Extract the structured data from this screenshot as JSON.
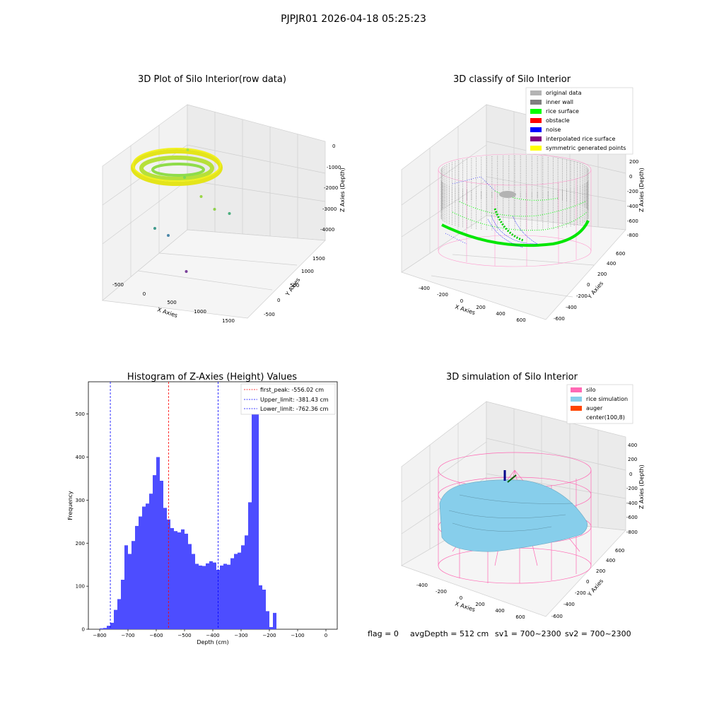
{
  "figure": {
    "title": "PJPJR01 2026-04-18 05:25:23",
    "footer": {
      "flag": "flag = 0",
      "avg_depth": "avgDepth = 512 cm",
      "sv1": "sv1 = 700~2300",
      "sv2": "sv2 = 700~2300"
    }
  },
  "colors": {
    "histogram_bar": "#4d4dff",
    "first_peak_line": "#ff0000",
    "limit_line": "#0000ff",
    "original_data": "#b3b3b3",
    "inner_wall": "#808080",
    "rice_surface": "#00ff00",
    "obstacle": "#ff0000",
    "noise": "#0000ff",
    "interpolated_rice_surface": "#800080",
    "symmetric_generated_points": "#ffff00",
    "silo": "#ff69b4",
    "rice_simulation": "#87ceeb",
    "auger": "#ff4500"
  },
  "chart_data": [
    {
      "type": "scatter",
      "subtype": "3d",
      "title": "3D Plot of Silo Interior(row data)",
      "xlabel": "X Axies",
      "ylabel": "Y Axies",
      "zlabel": "Z Axies (Depth)",
      "x_ticks": [
        -500,
        0,
        500,
        1000,
        1500
      ],
      "y_ticks": [
        -500,
        0,
        500,
        1000,
        1500
      ],
      "z_ticks": [
        0,
        -1000,
        -2000,
        -3000,
        -4000
      ],
      "outliers": [
        {
          "x": 700,
          "y": 300,
          "z": -300
        },
        {
          "x": 600,
          "y": 500,
          "z": -1500
        },
        {
          "x": 900,
          "y": 400,
          "z": -2000
        },
        {
          "x": 1100,
          "y": 500,
          "z": -2500
        },
        {
          "x": 1300,
          "y": 700,
          "z": -2800
        },
        {
          "x": 200,
          "y": 100,
          "z": -3000
        },
        {
          "x": 400,
          "y": 200,
          "z": -3300
        },
        {
          "x": 700,
          "y": 200,
          "z": -4500
        }
      ]
    },
    {
      "type": "scatter",
      "subtype": "3d",
      "title": "3D classify of Silo Interior",
      "xlabel": "X Axies",
      "ylabel": "Y Axies",
      "zlabel": "Z Axies (Depth)",
      "x_ticks": [
        -400,
        -200,
        0,
        200,
        400,
        600
      ],
      "y_ticks": [
        -600,
        -400,
        -200,
        0,
        200,
        400,
        600
      ],
      "z_ticks": [
        200,
        0,
        -200,
        -400,
        -600,
        -800
      ],
      "legend_position": "top-right",
      "legend": [
        "original data",
        "inner wall",
        "rice surface",
        "obstacle",
        "noise",
        "interpolated rice surface",
        "symmetric generated points"
      ]
    },
    {
      "type": "bar",
      "subtype": "histogram",
      "title": "Histogram of Z-Axies (Height) Values",
      "xlabel": "Depth (cm)",
      "ylabel": "Frequency",
      "xlim": [
        -840,
        40
      ],
      "ylim": [
        0,
        575
      ],
      "x_ticks": [
        -800,
        -700,
        -600,
        -500,
        -400,
        -300,
        -200,
        -100,
        0
      ],
      "y_ticks": [
        0,
        100,
        200,
        300,
        400,
        500
      ],
      "bin_width": 12.5,
      "bin_start": -800,
      "values": [
        2,
        3,
        8,
        15,
        45,
        70,
        115,
        195,
        175,
        205,
        240,
        262,
        285,
        292,
        315,
        358,
        400,
        345,
        282,
        255,
        235,
        228,
        225,
        232,
        222,
        198,
        175,
        152,
        148,
        147,
        153,
        158,
        155,
        138,
        148,
        152,
        150,
        165,
        175,
        178,
        195,
        218,
        295,
        525,
        545,
        102,
        92,
        42,
        5,
        38
      ],
      "vlines": [
        {
          "label": "first_peak: -556.02 cm",
          "x": -556.02,
          "color_key": "first_peak_line"
        },
        {
          "label": "Upper_limit: -381.43 cm",
          "x": -381.43,
          "color_key": "limit_line"
        },
        {
          "label": "Lower_limit: -762.36 cm",
          "x": -762.36,
          "color_key": "limit_line"
        }
      ],
      "legend_position": "top-right"
    },
    {
      "type": "surface",
      "subtype": "3d",
      "title": "3D simulation of Silo Interior",
      "xlabel": "X Axies",
      "ylabel": "Y Axies",
      "zlabel": "Z Axies (Depth)",
      "x_ticks": [
        -400,
        -200,
        0,
        200,
        400,
        600
      ],
      "y_ticks": [
        -600,
        -400,
        -200,
        0,
        200,
        400,
        600
      ],
      "z_ticks": [
        400,
        200,
        0,
        -200,
        -400,
        -600,
        -800
      ],
      "legend_position": "top-right",
      "legend": [
        "silo",
        "rice simulation",
        "auger",
        "center(100,8)"
      ]
    }
  ]
}
